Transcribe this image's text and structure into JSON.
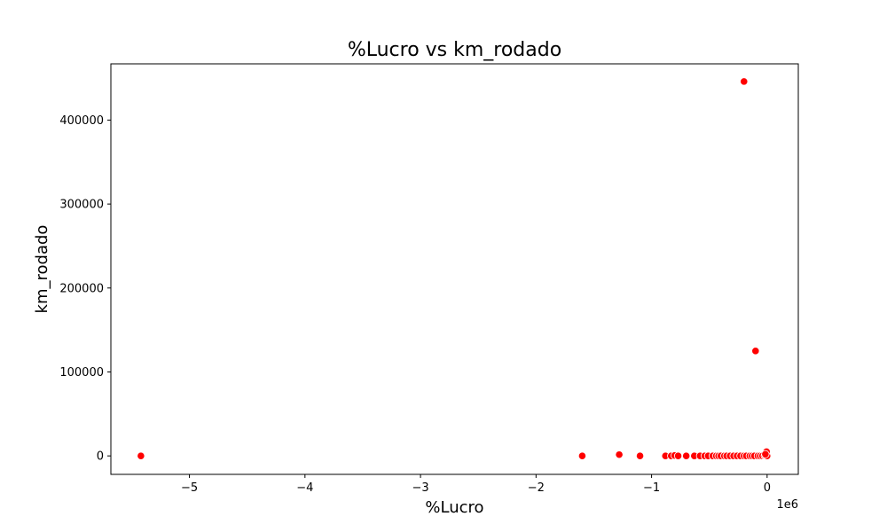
{
  "chart_data": {
    "type": "scatter",
    "title": "%Lucro vs km_rodado",
    "xlabel": "%Lucro",
    "ylabel": "km_rodado",
    "x_offset_label": "1e6",
    "xlim": [
      -5.68,
      0.27
    ],
    "ylim": [
      -22000,
      467000
    ],
    "x_ticks": [
      -5,
      -4,
      -3,
      -2,
      -1,
      0
    ],
    "x_tick_labels": [
      "−5",
      "−4",
      "−3",
      "−2",
      "−1",
      "0"
    ],
    "y_ticks": [
      0,
      100000,
      200000,
      300000,
      400000
    ],
    "y_tick_labels": [
      "0",
      "100000",
      "200000",
      "300000",
      "400000"
    ],
    "grid": false,
    "point_color": "#ff0000",
    "point_edge_color": "#ffffff",
    "series": [
      {
        "name": "%Lucro vs km_rodado",
        "x": [
          -5.42,
          -1.6,
          -1.28,
          -1.1,
          -0.88,
          -0.83,
          -0.8,
          -0.77,
          -0.7,
          -0.63,
          -0.58,
          -0.54,
          -0.51,
          -0.47,
          -0.44,
          -0.42,
          -0.4,
          -0.37,
          -0.35,
          -0.32,
          -0.29,
          -0.26,
          -0.23,
          -0.2,
          -0.2,
          -0.18,
          -0.15,
          -0.13,
          -0.11,
          -0.1,
          -0.08,
          -0.06,
          -0.04,
          -0.02,
          -0.01,
          0.0,
          -0.005,
          -0.015
        ],
        "y": [
          0,
          0,
          1500,
          0,
          0,
          0,
          500,
          0,
          0,
          0,
          0,
          0,
          0,
          0,
          0,
          0,
          0,
          0,
          0,
          0,
          0,
          0,
          0,
          0,
          446000,
          0,
          0,
          0,
          0,
          125000,
          0,
          0,
          0,
          0,
          0,
          0,
          5000,
          2000
        ]
      }
    ]
  }
}
